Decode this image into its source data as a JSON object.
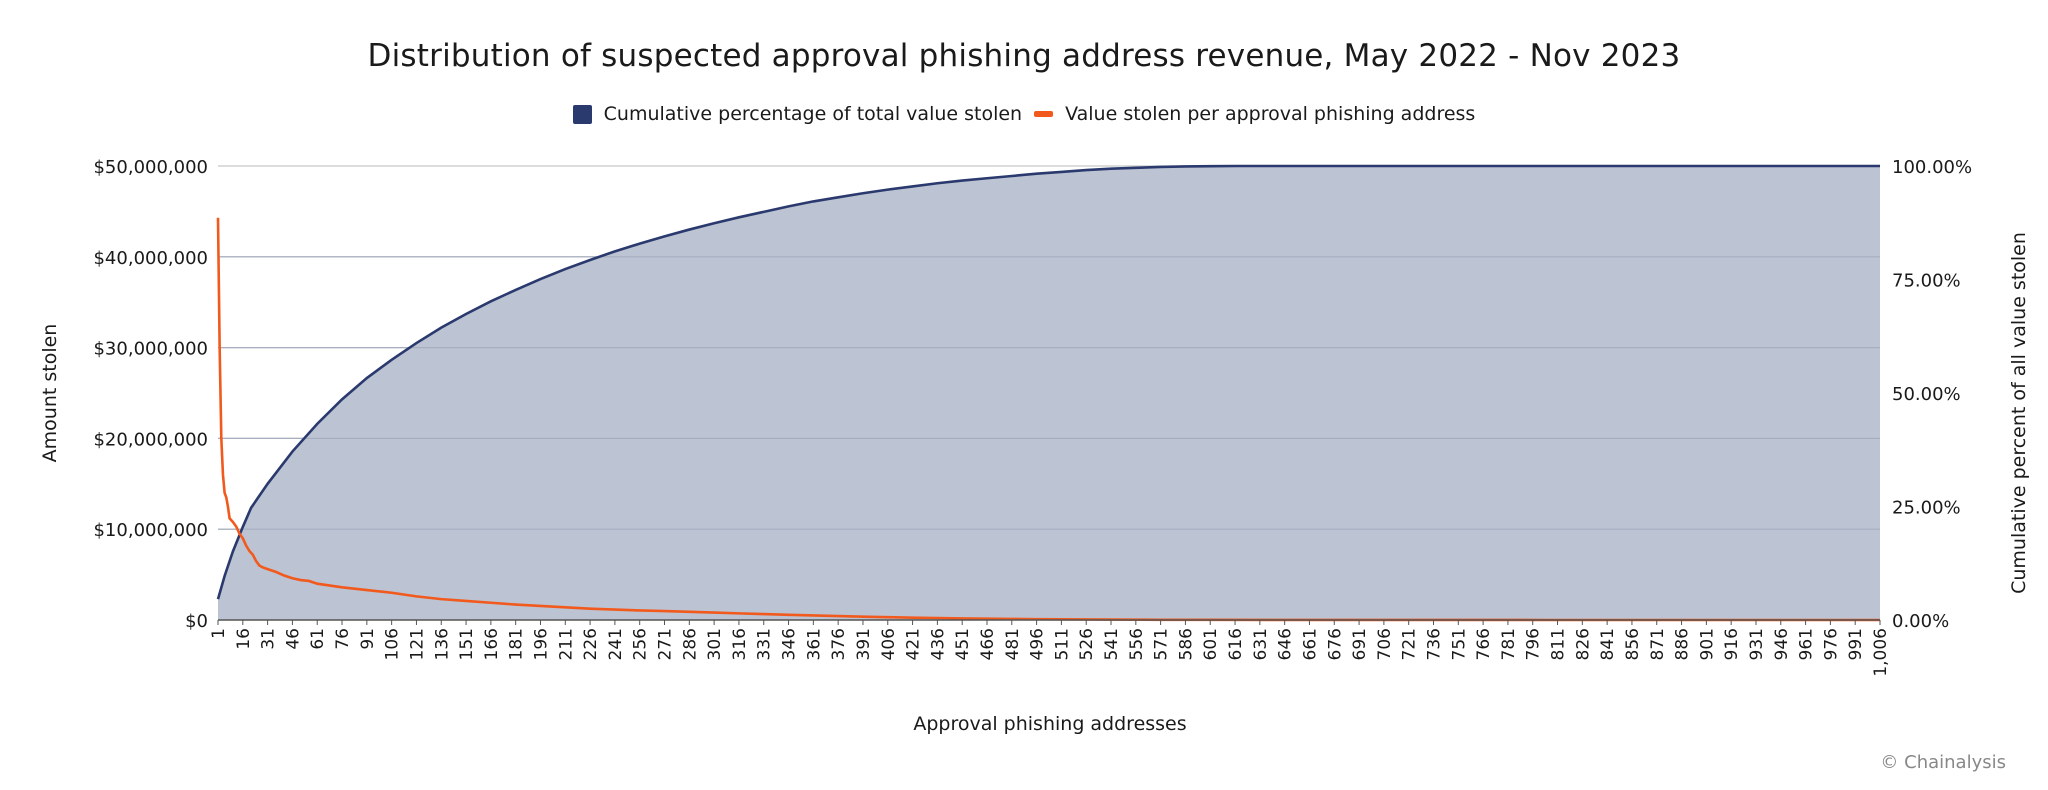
{
  "colors": {
    "area_fill": "#bcc3d3",
    "area_line": "#2b3a6e",
    "legend_area": "#2b3a6e",
    "orange": "#f15a1c",
    "grid": "#c8c8c8",
    "axis": "#555555"
  },
  "copyright": "© Chainalysis",
  "chart_data": {
    "type": "line",
    "title": "Distribution of suspected approval phishing address revenue, May 2022 - Nov 2023",
    "xlabel": "Approval phishing addresses",
    "ylabel": "Amount stolen",
    "y2label": "Cumulative percent of all value stolen",
    "legend_position": "top-center",
    "grid": true,
    "xlim": [
      1,
      1006
    ],
    "ylim": [
      0,
      50000000
    ],
    "y2lim": [
      0,
      100
    ],
    "x_tick_labels": [
      "1",
      "16",
      "31",
      "46",
      "61",
      "76",
      "91",
      "106",
      "121",
      "136",
      "151",
      "166",
      "181",
      "196",
      "211",
      "226",
      "241",
      "256",
      "271",
      "286",
      "301",
      "316",
      "331",
      "346",
      "361",
      "376",
      "391",
      "406",
      "421",
      "436",
      "451",
      "466",
      "481",
      "496",
      "511",
      "526",
      "541",
      "556",
      "571",
      "586",
      "601",
      "616",
      "631",
      "646",
      "661",
      "676",
      "691",
      "706",
      "721",
      "736",
      "751",
      "766",
      "781",
      "796",
      "811",
      "826",
      "841",
      "856",
      "871",
      "886",
      "901",
      "916",
      "931",
      "946",
      "961",
      "976",
      "991",
      "1,006"
    ],
    "y_tick_labels": [
      "$0",
      "$10,000,000",
      "$20,000,000",
      "$30,000,000",
      "$40,000,000",
      "$50,000,000"
    ],
    "y2_tick_labels": [
      "0.00%",
      "25.00%",
      "50.00%",
      "75.00%",
      "100.00%"
    ],
    "series": [
      {
        "name": "Cumulative percentage of total value stolen",
        "axis": "right",
        "style": "area",
        "x": [
          1,
          5,
          10,
          16,
          21,
          31,
          46,
          61,
          76,
          91,
          106,
          121,
          136,
          151,
          166,
          181,
          196,
          211,
          226,
          241,
          256,
          271,
          286,
          301,
          316,
          331,
          346,
          361,
          376,
          391,
          406,
          421,
          436,
          451,
          466,
          481,
          496,
          511,
          526,
          541,
          556,
          571,
          586,
          601,
          616,
          631,
          646,
          661,
          676,
          691,
          706,
          1006
        ],
        "y": [
          4.6,
          9.7,
          15.1,
          20.5,
          24.7,
          30.0,
          37.1,
          43.2,
          48.6,
          53.3,
          57.3,
          61.0,
          64.4,
          67.4,
          70.2,
          72.7,
          75.1,
          77.3,
          79.3,
          81.2,
          82.9,
          84.5,
          86.0,
          87.4,
          88.7,
          89.9,
          91.1,
          92.2,
          93.1,
          94.0,
          94.8,
          95.5,
          96.2,
          96.8,
          97.3,
          97.8,
          98.3,
          98.7,
          99.1,
          99.4,
          99.6,
          99.8,
          99.9,
          99.95,
          100,
          100,
          100,
          100,
          100,
          100,
          100,
          100
        ]
      },
      {
        "name": "Value stolen per approval phishing address",
        "axis": "left",
        "style": "line",
        "x": [
          1,
          2,
          3,
          4,
          5,
          6,
          7,
          8,
          10,
          12,
          14,
          16,
          18,
          20,
          22,
          24,
          26,
          28,
          31,
          36,
          41,
          46,
          51,
          56,
          61,
          76,
          91,
          106,
          121,
          136,
          151,
          166,
          181,
          196,
          211,
          226,
          241,
          256,
          271,
          286,
          301,
          316,
          331,
          346,
          361,
          376,
          391,
          406,
          421,
          436,
          451,
          466,
          481,
          496,
          511,
          526,
          541,
          556,
          571,
          601,
          651,
          701,
          801,
          1006
        ],
        "y": [
          44300000,
          30000000,
          20000000,
          16000000,
          14000000,
          13500000,
          12500000,
          11200000,
          10800000,
          10300000,
          9500000,
          9000000,
          8200000,
          7600000,
          7200000,
          6500000,
          6000000,
          5800000,
          5600000,
          5300000,
          4900000,
          4600000,
          4400000,
          4300000,
          4000000,
          3600000,
          3300000,
          3000000,
          2600000,
          2300000,
          2100000,
          1900000,
          1700000,
          1550000,
          1400000,
          1250000,
          1150000,
          1050000,
          980000,
          900000,
          820000,
          730000,
          650000,
          570000,
          500000,
          430000,
          370000,
          310000,
          260000,
          220000,
          180000,
          150000,
          120000,
          95000,
          75000,
          60000,
          45000,
          33000,
          25000,
          15000,
          8000,
          4000,
          1500,
          300
        ]
      }
    ]
  }
}
